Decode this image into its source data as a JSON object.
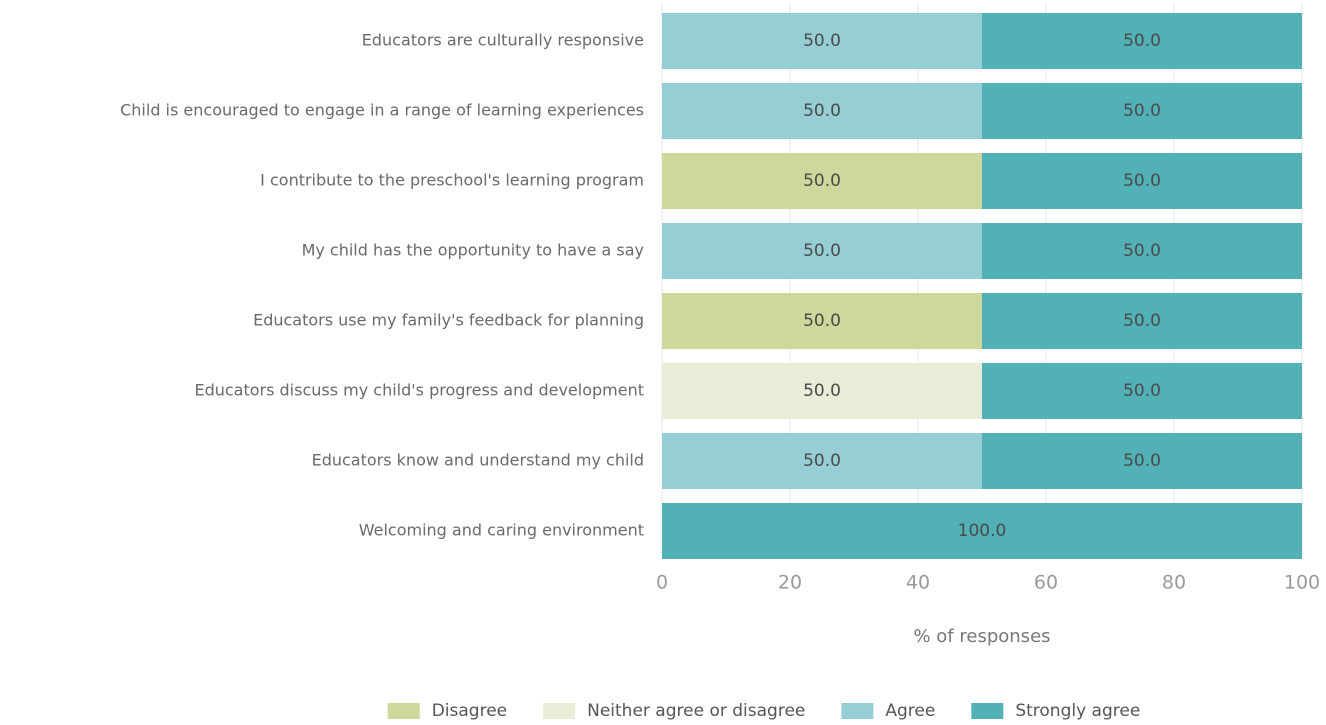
{
  "chart_data": {
    "type": "stacked_barh",
    "categories": [
      "Educators are culturally responsive",
      "Child is encouraged to engage in a range of learning experiences",
      "I contribute to the preschool's learning program",
      "My child has the opportunity to have a say",
      "Educators use my family's feedback for planning",
      "Educators discuss my child's progress and development",
      "Educators know and understand my child",
      "Welcoming and caring environment"
    ],
    "series": [
      {
        "name": "Disagree",
        "color": "#cdd89a",
        "values": [
          null,
          null,
          50,
          null,
          50,
          null,
          null,
          null
        ],
        "value_labels": [
          null,
          null,
          "50.0",
          null,
          "50.0",
          null,
          null,
          null
        ]
      },
      {
        "name": "Neither agree or disagree",
        "color": "#e9ecd6",
        "values": [
          null,
          null,
          null,
          null,
          null,
          50,
          null,
          null
        ],
        "value_labels": [
          null,
          null,
          null,
          null,
          null,
          "50.0",
          null,
          null
        ]
      },
      {
        "name": "Agree",
        "color": "#96ced5",
        "values": [
          50,
          50,
          null,
          50,
          null,
          null,
          50,
          null
        ],
        "value_labels": [
          "50.0",
          "50.0",
          null,
          "50.0",
          null,
          null,
          "50.0",
          null
        ]
      },
      {
        "name": "Strongly agree",
        "color": "#52b1b6",
        "values": [
          50,
          50,
          50,
          50,
          50,
          50,
          50,
          100
        ],
        "value_labels": [
          "50.0",
          "50.0",
          "50.0",
          "50.0",
          "50.0",
          "50.0",
          "50.0",
          "100.0"
        ]
      }
    ],
    "x_label": "% of responses",
    "xlim": [
      0,
      100
    ],
    "xticks": [
      0,
      20,
      40,
      60,
      80,
      100
    ],
    "grid": true,
    "legend": "bottom"
  }
}
